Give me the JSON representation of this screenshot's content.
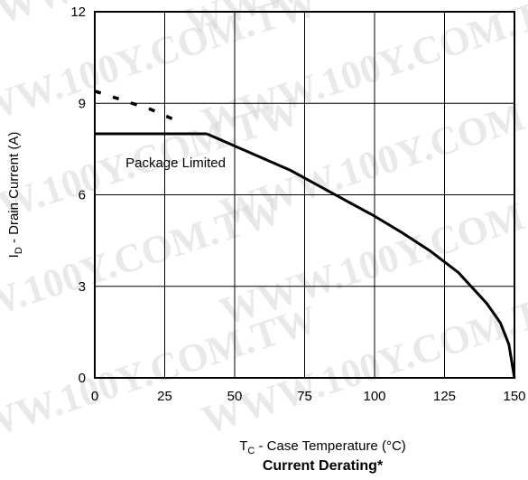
{
  "chart_data": {
    "type": "line",
    "title": "Current Derating*",
    "xlabel": {
      "main": "T",
      "sub": "C",
      "rest": " - Case Temperature (°C)"
    },
    "ylabel": {
      "main": "I",
      "sub": "D",
      "rest": " - Drain Current (A)"
    },
    "xlim": [
      0,
      150
    ],
    "ylim": [
      0,
      12
    ],
    "xticks": [
      0,
      25,
      50,
      75,
      100,
      125,
      150
    ],
    "yticks": [
      0,
      3,
      6,
      9,
      12
    ],
    "grid": true,
    "annotation": {
      "text": "Package Limited",
      "x": 11,
      "y": 6.9
    },
    "series": [
      {
        "style": "dashed",
        "x": [
          0,
          10,
          20,
          30
        ],
        "y": [
          9.4,
          9.1,
          8.8,
          8.4
        ]
      },
      {
        "style": "solid",
        "x": [
          0,
          10,
          20,
          30,
          40
        ],
        "y": [
          8.0,
          8.0,
          8.0,
          8.0,
          8.0
        ]
      },
      {
        "style": "solid",
        "x": [
          40,
          50,
          60,
          70,
          80,
          90,
          100,
          110,
          120,
          130,
          140,
          145,
          148,
          150
        ],
        "y": [
          8.0,
          7.6,
          7.2,
          6.8,
          6.3,
          5.8,
          5.3,
          4.75,
          4.15,
          3.45,
          2.45,
          1.8,
          1.1,
          0
        ]
      }
    ]
  },
  "watermark": "WWW.100Y.COM.TW"
}
